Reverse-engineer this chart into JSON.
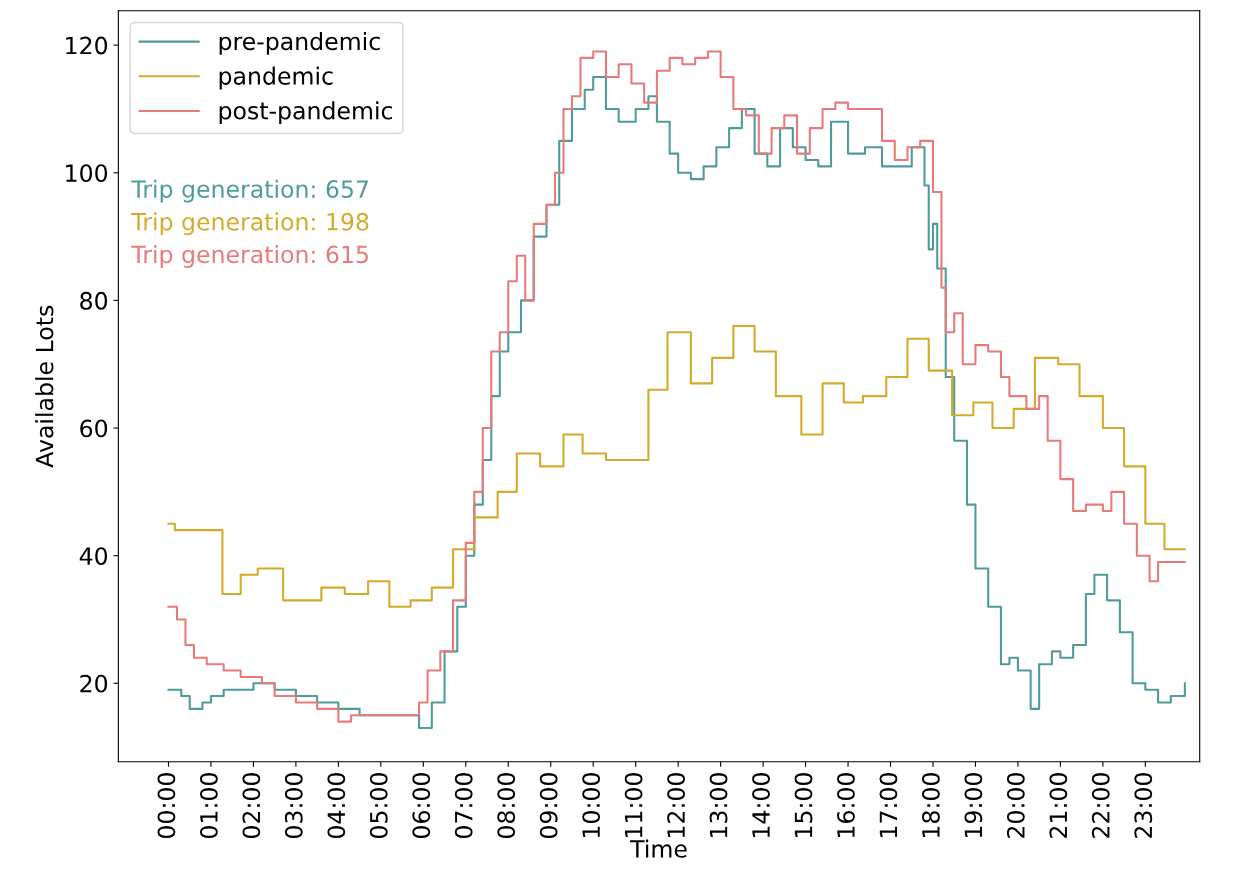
{
  "chart_data": {
    "type": "step",
    "xlabel": "Time",
    "ylabel": "Available Lots",
    "xlim": [
      -1.18,
      24.28
    ],
    "ylim": [
      7.7,
      125.4
    ],
    "xticks": [
      {
        "value": 0,
        "label": "00:00"
      },
      {
        "value": 1,
        "label": "01:00"
      },
      {
        "value": 2,
        "label": "02:00"
      },
      {
        "value": 3,
        "label": "03:00"
      },
      {
        "value": 4,
        "label": "04:00"
      },
      {
        "value": 5,
        "label": "05:00"
      },
      {
        "value": 6,
        "label": "06:00"
      },
      {
        "value": 7,
        "label": "07:00"
      },
      {
        "value": 8,
        "label": "08:00"
      },
      {
        "value": 9,
        "label": "09:00"
      },
      {
        "value": 10,
        "label": "10:00"
      },
      {
        "value": 11,
        "label": "11:00"
      },
      {
        "value": 12,
        "label": "12:00"
      },
      {
        "value": 13,
        "label": "13:00"
      },
      {
        "value": 14,
        "label": "14:00"
      },
      {
        "value": 15,
        "label": "15:00"
      },
      {
        "value": 16,
        "label": "16:00"
      },
      {
        "value": 17,
        "label": "17:00"
      },
      {
        "value": 18,
        "label": "18:00"
      },
      {
        "value": 19,
        "label": "19:00"
      },
      {
        "value": 20,
        "label": "20:00"
      },
      {
        "value": 21,
        "label": "21:00"
      },
      {
        "value": 22,
        "label": "22:00"
      },
      {
        "value": 23,
        "label": "23:00"
      }
    ],
    "yticks": [
      20,
      40,
      60,
      80,
      100,
      120
    ],
    "grid": false,
    "legend": "top left",
    "annotations": [
      "Trip generation: 657",
      "Trip generation: 198",
      "Trip generation: 615"
    ],
    "series": [
      {
        "name": "pre-pandemic",
        "color": "#4f9a9a",
        "x": [
          0,
          0.3,
          0.5,
          0.8,
          1.0,
          1.3,
          2.0,
          2.5,
          3.0,
          3.5,
          4.0,
          4.5,
          5.0,
          5.5,
          5.9,
          6.2,
          6.5,
          6.8,
          7.0,
          7.2,
          7.4,
          7.6,
          7.8,
          8.0,
          8.3,
          8.6,
          8.9,
          9.2,
          9.5,
          9.8,
          10.0,
          10.3,
          10.6,
          11.0,
          11.3,
          11.5,
          11.8,
          12.0,
          12.3,
          12.6,
          12.9,
          13.2,
          13.5,
          13.8,
          14.1,
          14.4,
          14.7,
          15.0,
          15.3,
          15.6,
          16.0,
          16.4,
          16.8,
          17.2,
          17.5,
          17.8,
          17.9,
          18.0,
          18.1,
          18.3,
          18.5,
          18.8,
          19.0,
          19.3,
          19.6,
          19.8,
          20.0,
          20.3,
          20.5,
          20.8,
          21.0,
          21.3,
          21.6,
          21.8,
          22.1,
          22.4,
          22.7,
          23.0,
          23.3,
          23.6,
          23.93
        ],
        "values": [
          19,
          18,
          16,
          17,
          18,
          19,
          20,
          19,
          18,
          17,
          16,
          15,
          15,
          15,
          13,
          17,
          25,
          32,
          40,
          48,
          55,
          65,
          72,
          75,
          80,
          90,
          95,
          105,
          110,
          113,
          115,
          110,
          108,
          110,
          112,
          108,
          103,
          100,
          99,
          101,
          104,
          107,
          110,
          103,
          101,
          107,
          104,
          102,
          101,
          108,
          103,
          104,
          101,
          101,
          104,
          98,
          88,
          92,
          85,
          68,
          58,
          48,
          38,
          32,
          23,
          24,
          22,
          16,
          23,
          25,
          24,
          26,
          34,
          37,
          33,
          28,
          20,
          19,
          17,
          18,
          20
        ]
      },
      {
        "name": "pandemic",
        "color": "#d4aa2a",
        "x": [
          0,
          0.15,
          1.27,
          1.7,
          2.1,
          2.7,
          3.6,
          4.15,
          4.7,
          5.2,
          5.7,
          6.2,
          6.7,
          7.2,
          7.75,
          8.2,
          8.75,
          9.3,
          9.75,
          10.3,
          11.3,
          11.75,
          12.3,
          12.8,
          13.3,
          13.8,
          14.3,
          14.9,
          15.4,
          15.9,
          16.35,
          16.9,
          17.4,
          17.9,
          18.45,
          18.95,
          19.4,
          19.9,
          20.4,
          20.95,
          21.45,
          22.0,
          22.5,
          23.0,
          23.45,
          23.93
        ],
        "values": [
          45,
          44,
          34,
          37,
          38,
          33,
          35,
          34,
          36,
          32,
          33,
          35,
          41,
          46,
          50,
          56,
          54,
          59,
          56,
          55,
          66,
          75,
          67,
          71,
          76,
          72,
          65,
          59,
          67,
          64,
          65,
          68,
          74,
          69,
          62,
          64,
          60,
          63,
          71,
          70,
          65,
          60,
          54,
          45,
          41,
          41
        ]
      },
      {
        "name": "post-pandemic",
        "color": "#e87a7a",
        "x": [
          0,
          0.2,
          0.4,
          0.6,
          0.9,
          1.3,
          1.7,
          2.2,
          2.5,
          3.0,
          3.5,
          4.0,
          4.3,
          4.8,
          5.3,
          5.6,
          5.9,
          6.1,
          6.4,
          6.7,
          7.0,
          7.2,
          7.4,
          7.6,
          7.8,
          8.0,
          8.2,
          8.4,
          8.6,
          8.9,
          9.1,
          9.3,
          9.5,
          9.7,
          10.0,
          10.3,
          10.6,
          10.9,
          11.2,
          11.5,
          11.8,
          12.1,
          12.4,
          12.7,
          13.0,
          13.3,
          13.6,
          13.9,
          14.2,
          14.5,
          14.8,
          15.1,
          15.4,
          15.7,
          16.0,
          16.4,
          16.8,
          17.1,
          17.4,
          17.7,
          18.0,
          18.2,
          18.3,
          18.5,
          18.7,
          19.0,
          19.3,
          19.6,
          19.8,
          20.2,
          20.5,
          20.7,
          21.0,
          21.3,
          21.6,
          22.0,
          22.2,
          22.5,
          22.8,
          23.1,
          23.3,
          23.93
        ],
        "values": [
          32,
          30,
          26,
          24,
          23,
          22,
          21,
          20,
          18,
          17,
          16,
          14,
          15,
          15,
          15,
          15,
          17,
          22,
          25,
          33,
          42,
          50,
          60,
          72,
          75,
          83,
          87,
          80,
          92,
          95,
          100,
          110,
          112,
          118,
          119,
          115,
          117,
          114,
          111,
          116,
          118,
          117,
          118,
          119,
          115,
          110,
          109,
          103,
          107,
          109,
          103,
          107,
          110,
          111,
          110,
          110,
          105,
          102,
          104,
          105,
          97,
          82,
          75,
          78,
          70,
          73,
          72,
          68,
          65,
          63,
          65,
          58,
          52,
          47,
          48,
          47,
          50,
          45,
          40,
          36,
          39,
          39
        ]
      }
    ]
  }
}
